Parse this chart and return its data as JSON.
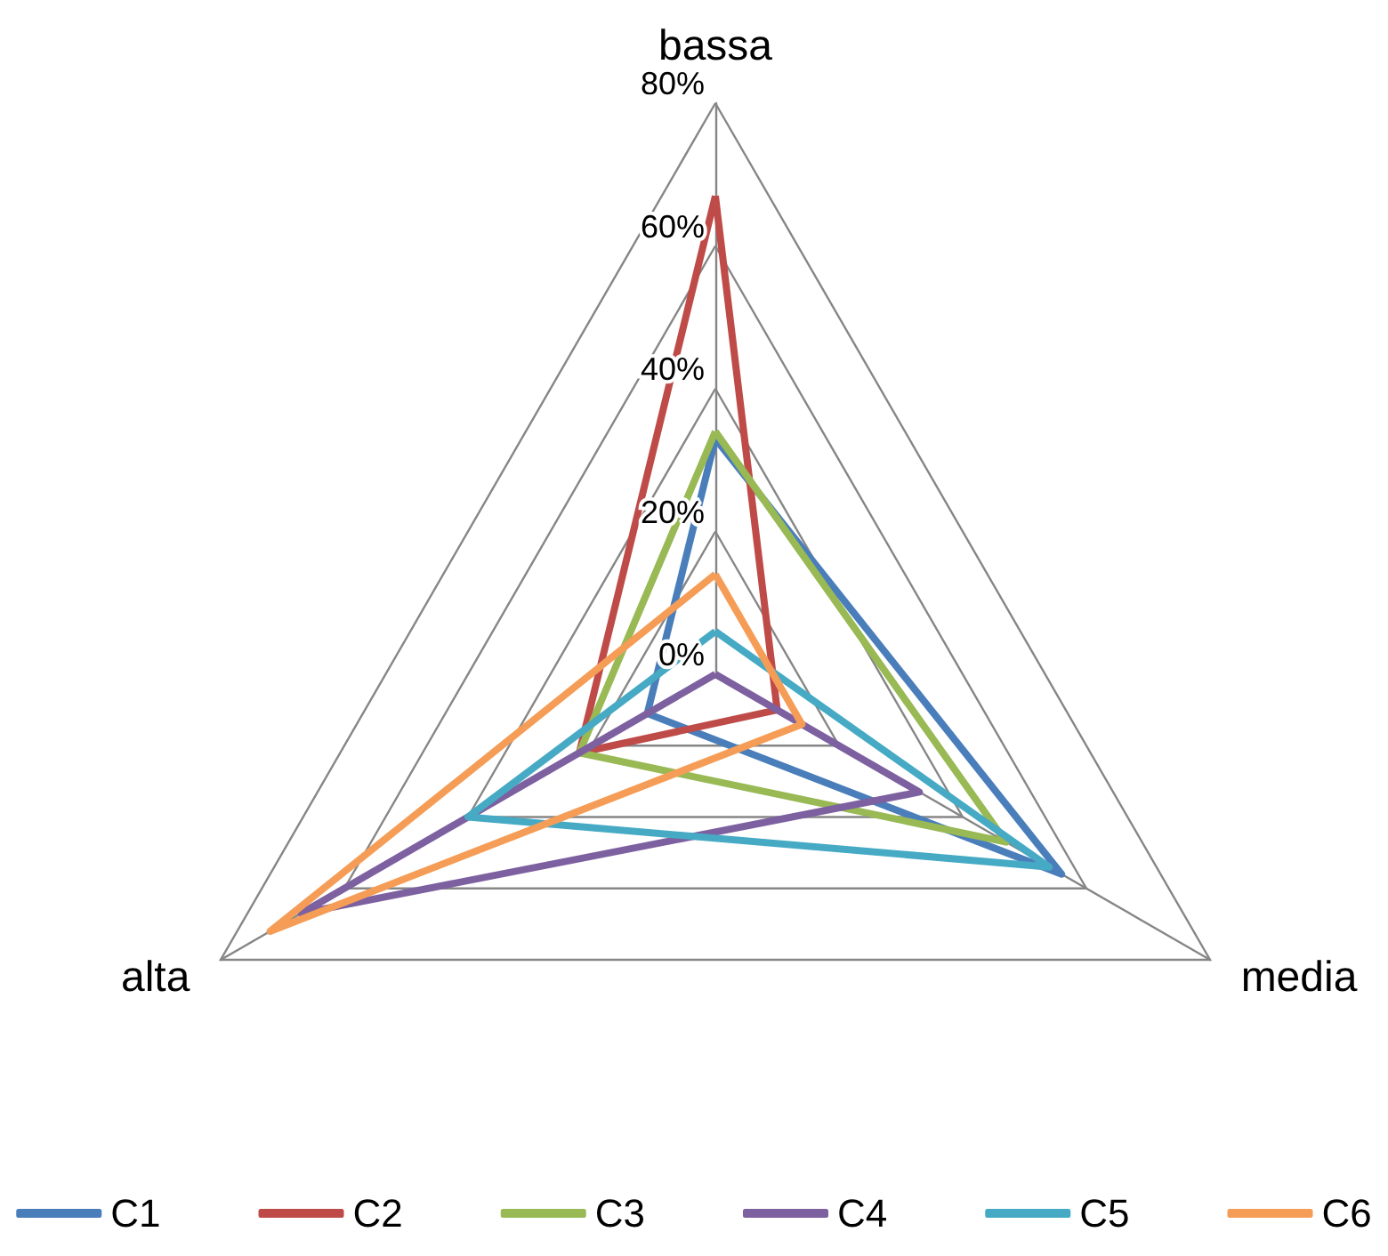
{
  "chart_data": {
    "type": "radar",
    "categories": [
      "bassa",
      "media",
      "alta"
    ],
    "ylim": [
      0,
      80
    ],
    "yticks": [
      {
        "value": 0,
        "label": "0%"
      },
      {
        "value": 20,
        "label": "20%"
      },
      {
        "value": 40,
        "label": "40%"
      },
      {
        "value": 60,
        "label": "60%"
      },
      {
        "value": 80,
        "label": "80%"
      }
    ],
    "series": [
      {
        "name": "C1",
        "color": "#4a7ebb",
        "values": [
          33,
          56,
          11
        ]
      },
      {
        "name": "C2",
        "color": "#be4b48",
        "values": [
          67,
          10,
          22
        ]
      },
      {
        "name": "C3",
        "color": "#98b954",
        "values": [
          34,
          47,
          22
        ]
      },
      {
        "name": "C4",
        "color": "#7d60a0",
        "values": [
          0,
          33,
          67
        ]
      },
      {
        "name": "C5",
        "color": "#46aac5",
        "values": [
          6,
          54,
          40
        ]
      },
      {
        "name": "C6",
        "color": "#f59d56",
        "values": [
          14,
          14,
          72
        ]
      }
    ],
    "legend": "bottom",
    "marker": "none",
    "line_style": "solid"
  }
}
